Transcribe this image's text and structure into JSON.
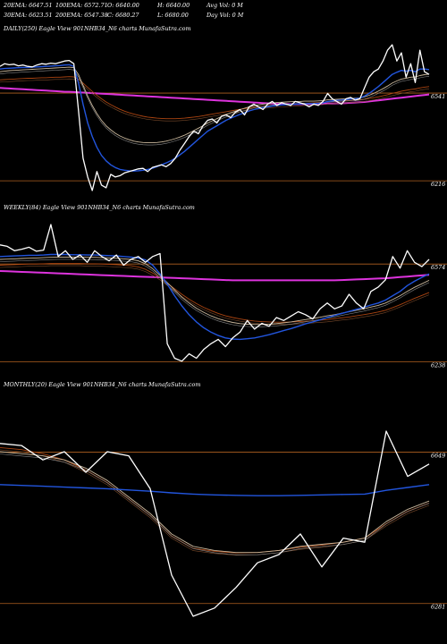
{
  "header": {
    "row1": [
      "20EMA: 6647.51",
      "100EMA: 6572.71",
      "O: 6640.00",
      "H: 6640.00",
      "Avg Vol: 0  M"
    ],
    "row2": [
      "30EMA: 6623.51",
      "200EMA: 6547.38",
      "C: 6680.27",
      "L: 6680.00",
      "Day Vol: 0  M"
    ]
  },
  "colors": {
    "background": "#000000",
    "price": "#ffffff",
    "ema_fast": "#2255dd",
    "ema_mid": "#c9b79c",
    "ema_slow": "#aa4411",
    "ema_long": "#dd33dd",
    "level_line": "#b06020"
  },
  "chart_data": [
    {
      "type": "line",
      "title": "DAILY(250) Eagle  View  901NHB34_N6  charts MunafaSutra.com",
      "ylim": [
        6150,
        6760
      ],
      "ticks": [
        {
          "value": 6541,
          "label": "6541"
        },
        {
          "value": 6216,
          "label": "6216"
        }
      ],
      "series": [
        {
          "role": "price",
          "values": [
            6640,
            6650,
            6646,
            6648,
            6642,
            6645,
            6640,
            6638,
            6645,
            6650,
            6648,
            6652,
            6650,
            6655,
            6660,
            6662,
            6650,
            6480,
            6300,
            6230,
            6180,
            6250,
            6200,
            6190,
            6240,
            6230,
            6235,
            6245,
            6250,
            6255,
            6260,
            6262,
            6250,
            6265,
            6270,
            6275,
            6268,
            6280,
            6300,
            6330,
            6355,
            6380,
            6400,
            6390,
            6420,
            6440,
            6445,
            6430,
            6455,
            6460,
            6450,
            6470,
            6480,
            6460,
            6490,
            6500,
            6490,
            6480,
            6500,
            6510,
            6495,
            6505,
            6500,
            6495,
            6510,
            6505,
            6500,
            6490,
            6500,
            6495,
            6510,
            6540,
            6520,
            6510,
            6500,
            6520,
            6525,
            6515,
            6520,
            6560,
            6600,
            6620,
            6630,
            6660,
            6700,
            6720,
            6660,
            6690,
            6600,
            6650,
            6580,
            6700,
            6620,
            6610
          ]
        },
        {
          "role": "ema_fast",
          "values": [
            6630,
            6632,
            6633,
            6634,
            6635,
            6636,
            6636,
            6637,
            6638,
            6639,
            6640,
            6641,
            6642,
            6643,
            6645,
            6646,
            6640,
            6580,
            6500,
            6430,
            6380,
            6340,
            6310,
            6290,
            6275,
            6265,
            6258,
            6255,
            6253,
            6252,
            6253,
            6255,
            6258,
            6262,
            6268,
            6275,
            6282,
            6290,
            6300,
            6312,
            6325,
            6340,
            6355,
            6370,
            6385,
            6400,
            6410,
            6420,
            6430,
            6440,
            6448,
            6455,
            6462,
            6468,
            6475,
            6480,
            6484,
            6487,
            6490,
            6493,
            6495,
            6497,
            6498,
            6499,
            6500,
            6501,
            6501,
            6502,
            6502,
            6503,
            6505,
            6510,
            6512,
            6514,
            6515,
            6517,
            6519,
            6520,
            6522,
            6530,
            6540,
            6552,
            6565,
            6580,
            6595,
            6610,
            6618,
            6625,
            6622,
            6625,
            6620,
            6630,
            6630,
            6628
          ]
        },
        {
          "role": "ema_mid",
          "values": [
            6620,
            6622,
            6624,
            6625,
            6626,
            6627,
            6628,
            6629,
            6630,
            6631,
            6632,
            6633,
            6634,
            6635,
            6636,
            6637,
            6635,
            6610,
            6570,
            6530,
            6495,
            6465,
            6440,
            6420,
            6405,
            6392,
            6382,
            6374,
            6368,
            6363,
            6360,
            6358,
            6357,
            6357,
            6358,
            6360,
            6363,
            6367,
            6372,
            6378,
            6385,
            6393,
            6402,
            6411,
            6420,
            6430,
            6438,
            6446,
            6454,
            6461,
            6468,
            6474,
            6480,
            6485,
            6490,
            6494,
            6497,
            6500,
            6502,
            6504,
            6506,
            6507,
            6508,
            6509,
            6510,
            6510,
            6511,
            6511,
            6511,
            6512,
            6513,
            6516,
            6517,
            6518,
            6519,
            6520,
            6521,
            6522,
            6523,
            6527,
            6533,
            6540,
            6548,
            6557,
            6567,
            6578,
            6586,
            6593,
            6596,
            6600,
            6601,
            6606,
            6609,
            6611
          ]
        },
        {
          "role": "ema_slow",
          "values": [
            6590,
            6591,
            6592,
            6593,
            6594,
            6595,
            6596,
            6596,
            6597,
            6598,
            6598,
            6599,
            6600,
            6600,
            6601,
            6602,
            6601,
            6592,
            6578,
            6562,
            6547,
            6533,
            6520,
            6508,
            6498,
            6489,
            6481,
            6474,
            6468,
            6463,
            6459,
            6455,
            6452,
            6450,
            6448,
            6447,
            6446,
            6446,
            6446,
            6447,
            6448,
            6450,
            6452,
            6454,
            6457,
            6460,
            6463,
            6466,
            6469,
            6472,
            6475,
            6478,
            6481,
            6483,
            6486,
            6488,
            6490,
            6492,
            6494,
            6495,
            6497,
            6498,
            6499,
            6500,
            6501,
            6502,
            6503,
            6504,
            6505,
            6506,
            6507,
            6509,
            6510,
            6511,
            6512,
            6513,
            6514,
            6515,
            6516,
            6518,
            6521,
            6524,
            6527,
            6531,
            6535,
            6540,
            6544,
            6548,
            6551,
            6554,
            6556,
            6560,
            6563,
            6565
          ]
        },
        {
          "role": "ema_long",
          "values": [
            6560,
            6559,
            6558,
            6557,
            6556,
            6555,
            6554,
            6553,
            6552,
            6551,
            6550,
            6549,
            6548,
            6547,
            6546,
            6546,
            6545,
            6544,
            6543,
            6542,
            6541,
            6540,
            6539,
            6538,
            6537,
            6536,
            6535,
            6534,
            6533,
            6532,
            6531,
            6530,
            6529,
            6528,
            6527,
            6526,
            6525,
            6524,
            6523,
            6522,
            6521,
            6520,
            6519,
            6518,
            6517,
            6516,
            6515,
            6514,
            6513,
            6512,
            6511,
            6510,
            6509,
            6508,
            6507,
            6506,
            6505,
            6504,
            6503,
            6502,
            6501,
            6500,
            6500,
            6500,
            6500,
            6500,
            6500,
            6500,
            6500,
            6500,
            6501,
            6502,
            6502,
            6503,
            6503,
            6504,
            6505,
            6506,
            6507,
            6508,
            6510,
            6512,
            6514,
            6516,
            6518,
            6520,
            6522,
            6524,
            6526,
            6528,
            6530,
            6532,
            6534,
            6536
          ]
        }
      ]
    },
    {
      "type": "line",
      "title": "WEEKLY(84) Eagle  View  901NHB34_N6  charts MunafaSutra.com",
      "ylim": [
        6190,
        6750
      ],
      "ticks": [
        {
          "value": 6574,
          "label": "6574"
        },
        {
          "value": 6238,
          "label": "6238"
        }
      ],
      "series": [
        {
          "role": "price",
          "values": [
            6640,
            6635,
            6620,
            6625,
            6632,
            6618,
            6622,
            6710,
            6600,
            6620,
            6590,
            6605,
            6580,
            6620,
            6600,
            6585,
            6605,
            6570,
            6590,
            6600,
            6580,
            6600,
            6610,
            6300,
            6250,
            6240,
            6265,
            6250,
            6280,
            6300,
            6315,
            6290,
            6320,
            6340,
            6380,
            6350,
            6370,
            6360,
            6390,
            6380,
            6395,
            6410,
            6400,
            6385,
            6420,
            6440,
            6420,
            6430,
            6470,
            6440,
            6420,
            6480,
            6495,
            6520,
            6600,
            6560,
            6620,
            6580,
            6565,
            6590
          ]
        },
        {
          "role": "ema_fast",
          "values": [
            6600,
            6601,
            6602,
            6603,
            6604,
            6604,
            6605,
            6607,
            6607,
            6607,
            6606,
            6606,
            6605,
            6605,
            6604,
            6603,
            6602,
            6600,
            6598,
            6595,
            6588,
            6570,
            6540,
            6505,
            6465,
            6430,
            6400,
            6375,
            6355,
            6340,
            6328,
            6320,
            6316,
            6315,
            6317,
            6320,
            6325,
            6331,
            6338,
            6345,
            6352,
            6360,
            6368,
            6375,
            6382,
            6390,
            6397,
            6404,
            6411,
            6418,
            6425,
            6433,
            6440,
            6450,
            6465,
            6480,
            6500,
            6515,
            6528,
            6540
          ]
        },
        {
          "role": "ema_mid",
          "values": [
            6590,
            6591,
            6592,
            6593,
            6594,
            6595,
            6596,
            6597,
            6598,
            6598,
            6598,
            6598,
            6597,
            6597,
            6596,
            6595,
            6594,
            6592,
            6590,
            6585,
            6575,
            6558,
            6535,
            6510,
            6485,
            6460,
            6440,
            6422,
            6408,
            6396,
            6386,
            6379,
            6373,
            6369,
            6367,
            6366,
            6366,
            6367,
            6369,
            6372,
            6375,
            6379,
            6383,
            6387,
            6391,
            6396,
            6400,
            6405,
            6410,
            6415,
            6420,
            6426,
            6432,
            6440,
            6452,
            6465,
            6480,
            6494,
            6506,
            6518
          ]
        },
        {
          "role": "ema_slow",
          "values": [
            6570,
            6571,
            6572,
            6573,
            6574,
            6574,
            6575,
            6576,
            6576,
            6576,
            6576,
            6576,
            6575,
            6575,
            6574,
            6573,
            6572,
            6570,
            6568,
            6564,
            6556,
            6543,
            6527,
            6508,
            6489,
            6470,
            6453,
            6438,
            6425,
            6414,
            6404,
            6396,
            6390,
            6385,
            6381,
            6378,
            6376,
            6375,
            6374,
            6374,
            6375,
            6376,
            6377,
            6379,
            6381,
            6383,
            6386,
            6389,
            6392,
            6396,
            6400,
            6404,
            6409,
            6415,
            6424,
            6434,
            6445,
            6456,
            6466,
            6476
          ]
        },
        {
          "role": "ema_long",
          "values": [
            6550,
            6549,
            6548,
            6547,
            6546,
            6545,
            6544,
            6543,
            6542,
            6541,
            6540,
            6539,
            6538,
            6537,
            6536,
            6535,
            6534,
            6533,
            6532,
            6531,
            6530,
            6529,
            6528,
            6527,
            6526,
            6525,
            6524,
            6523,
            6522,
            6521,
            6520,
            6519,
            6518,
            6518,
            6518,
            6518,
            6518,
            6518,
            6518,
            6518,
            6518,
            6518,
            6518,
            6518,
            6518,
            6518,
            6518,
            6519,
            6520,
            6521,
            6522,
            6523,
            6524,
            6525,
            6527,
            6529,
            6531,
            6533,
            6535,
            6537
          ]
        }
      ]
    },
    {
      "type": "line",
      "title": "MONTHLY(20) Eagle  View  901NHB34_N6  charts MunafaSutra.com",
      "ylim": [
        6200,
        6800
      ],
      "ticks": [
        {
          "value": 6649,
          "label": "6649"
        },
        {
          "value": 6281,
          "label": "6281"
        }
      ],
      "series": [
        {
          "role": "price",
          "values": [
            6670,
            6665,
            6630,
            6650,
            6600,
            6650,
            6640,
            6560,
            6350,
            6250,
            6270,
            6320,
            6380,
            6400,
            6450,
            6370,
            6440,
            6430,
            6700,
            6590,
            6620
          ]
        },
        {
          "role": "ema_fast",
          "values": [
            6570,
            6568,
            6566,
            6564,
            6562,
            6560,
            6557,
            6554,
            6550,
            6547,
            6545,
            6544,
            6543,
            6543,
            6544,
            6545,
            6546,
            6547,
            6556,
            6563,
            6570
          ]
        },
        {
          "role": "ema_mid",
          "values": [
            6650,
            6645,
            6640,
            6630,
            6610,
            6580,
            6540,
            6500,
            6450,
            6420,
            6410,
            6405,
            6405,
            6410,
            6420,
            6425,
            6430,
            6440,
            6480,
            6510,
            6530
          ]
        },
        {
          "role": "ema_slow",
          "values": [
            6660,
            6655,
            6645,
            6630,
            6605,
            6575,
            6535,
            6495,
            6445,
            6415,
            6408,
            6404,
            6405,
            6410,
            6418,
            6423,
            6430,
            6440,
            6475,
            6505,
            6525
          ]
        }
      ]
    }
  ]
}
